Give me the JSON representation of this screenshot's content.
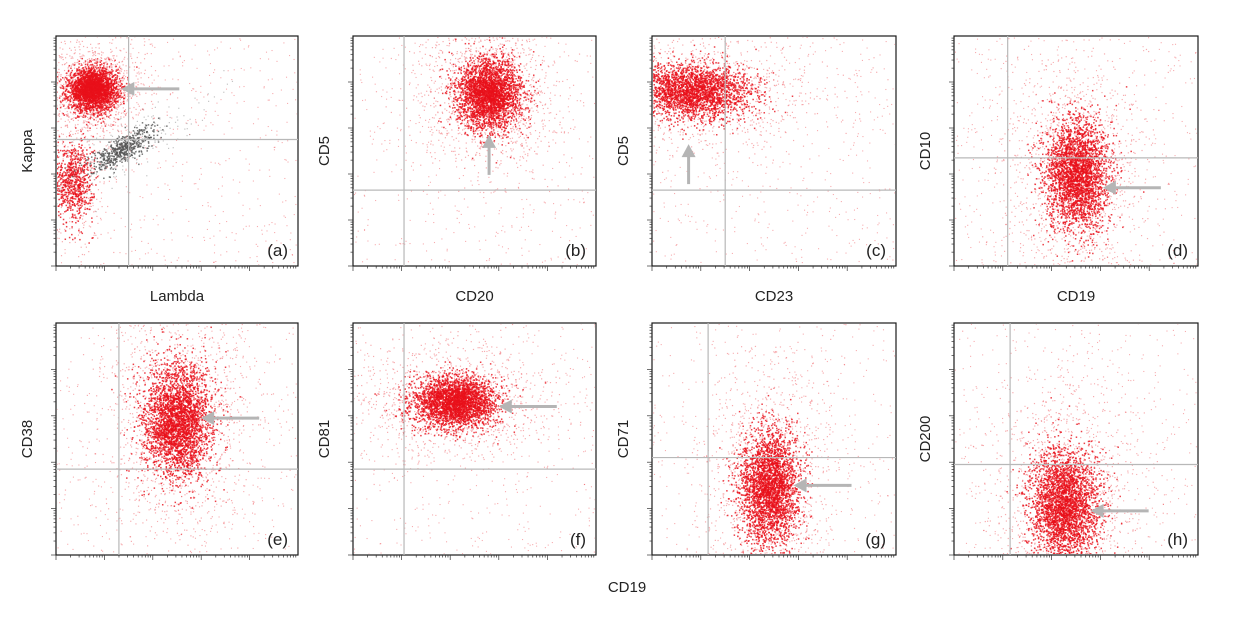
{
  "shared_xlabel_bottom": "CD19",
  "chart_data": [
    {
      "type": "scatter",
      "panel_label": "(a)",
      "xlabel": "Lambda",
      "ylabel": "Kappa",
      "log_axes": true,
      "gates": {
        "x": 0.3,
        "y": 0.55
      },
      "arrow": {
        "direction": "left",
        "points_to": [
          0.27,
          0.77
        ]
      },
      "populations": [
        {
          "name": "",
          "color": "#e8101a",
          "center": [
            0.15,
            0.77
          ],
          "spread": [
            0.05,
            0.045
          ],
          "count": 2600
        },
        {
          "name": "",
          "color": "#e8101a",
          "center": [
            0.07,
            0.37
          ],
          "spread": [
            0.04,
            0.09
          ],
          "count": 700
        },
        {
          "name": "",
          "color": "#555555",
          "center": [
            0.27,
            0.51
          ],
          "spread": [
            0.07,
            0.03
          ],
          "count": 500,
          "diagonal": true
        }
      ]
    },
    {
      "type": "scatter",
      "panel_label": "(b)",
      "xlabel": "CD20",
      "ylabel": "CD5",
      "log_axes": true,
      "gates": {
        "x": 0.21,
        "y": 0.33
      },
      "arrow": {
        "direction": "up",
        "points_to": [
          0.56,
          0.57
        ]
      },
      "populations": [
        {
          "name": "",
          "color": "#e8101a",
          "center": [
            0.56,
            0.75
          ],
          "spread": [
            0.065,
            0.075
          ],
          "count": 2800
        }
      ]
    },
    {
      "type": "scatter",
      "panel_label": "(c)",
      "xlabel": "CD23",
      "ylabel": "CD5",
      "log_axes": true,
      "gates": {
        "x": 0.3,
        "y": 0.33
      },
      "arrow": {
        "direction": "up",
        "points_to": [
          0.15,
          0.53
        ]
      },
      "populations": [
        {
          "name": "",
          "color": "#e8101a",
          "center": [
            0.17,
            0.76
          ],
          "spread": [
            0.12,
            0.06
          ],
          "count": 2500
        }
      ]
    },
    {
      "type": "scatter",
      "panel_label": "(d)",
      "xlabel": "CD19",
      "ylabel": "CD10",
      "log_axes": true,
      "gates": {
        "x": 0.22,
        "y": 0.47
      },
      "arrow": {
        "direction": "left",
        "points_to": [
          0.61,
          0.34
        ]
      },
      "populations": [
        {
          "name": "",
          "color": "#e8101a",
          "center": [
            0.5,
            0.4
          ],
          "spread": [
            0.065,
            0.12
          ],
          "count": 2800
        }
      ]
    },
    {
      "type": "scatter",
      "panel_label": "(e)",
      "xlabel": "",
      "ylabel": "CD38",
      "log_axes": true,
      "gates": {
        "x": 0.26,
        "y": 0.37
      },
      "arrow": {
        "direction": "left",
        "points_to": [
          0.6,
          0.59
        ]
      },
      "populations": [
        {
          "name": "",
          "color": "#e8101a",
          "center": [
            0.5,
            0.58
          ],
          "spread": [
            0.07,
            0.12
          ],
          "count": 3000
        }
      ]
    },
    {
      "type": "scatter",
      "panel_label": "(f)",
      "xlabel": "",
      "ylabel": "CD81",
      "log_axes": true,
      "gates": {
        "x": 0.21,
        "y": 0.37
      },
      "arrow": {
        "direction": "left",
        "points_to": [
          0.6,
          0.64
        ]
      },
      "populations": [
        {
          "name": "",
          "color": "#e8101a",
          "center": [
            0.42,
            0.66
          ],
          "spread": [
            0.085,
            0.055
          ],
          "count": 2800
        }
      ]
    },
    {
      "type": "scatter",
      "panel_label": "(g)",
      "xlabel": "",
      "ylabel": "CD71",
      "log_axes": true,
      "gates": {
        "x": 0.23,
        "y": 0.42
      },
      "arrow": {
        "direction": "left",
        "points_to": [
          0.58,
          0.3
        ]
      },
      "populations": [
        {
          "name": "",
          "color": "#e8101a",
          "center": [
            0.48,
            0.3
          ],
          "spread": [
            0.06,
            0.12
          ],
          "count": 2800
        }
      ]
    },
    {
      "type": "scatter",
      "panel_label": "(h)",
      "xlabel": "",
      "ylabel": "CD200",
      "log_axes": true,
      "gates": {
        "x": 0.23,
        "y": 0.39
      },
      "arrow": {
        "direction": "left",
        "points_to": [
          0.56,
          0.19
        ]
      },
      "populations": [
        {
          "name": "",
          "color": "#e8101a",
          "center": [
            0.45,
            0.21
          ],
          "spread": [
            0.07,
            0.12
          ],
          "count": 2900
        }
      ]
    }
  ]
}
